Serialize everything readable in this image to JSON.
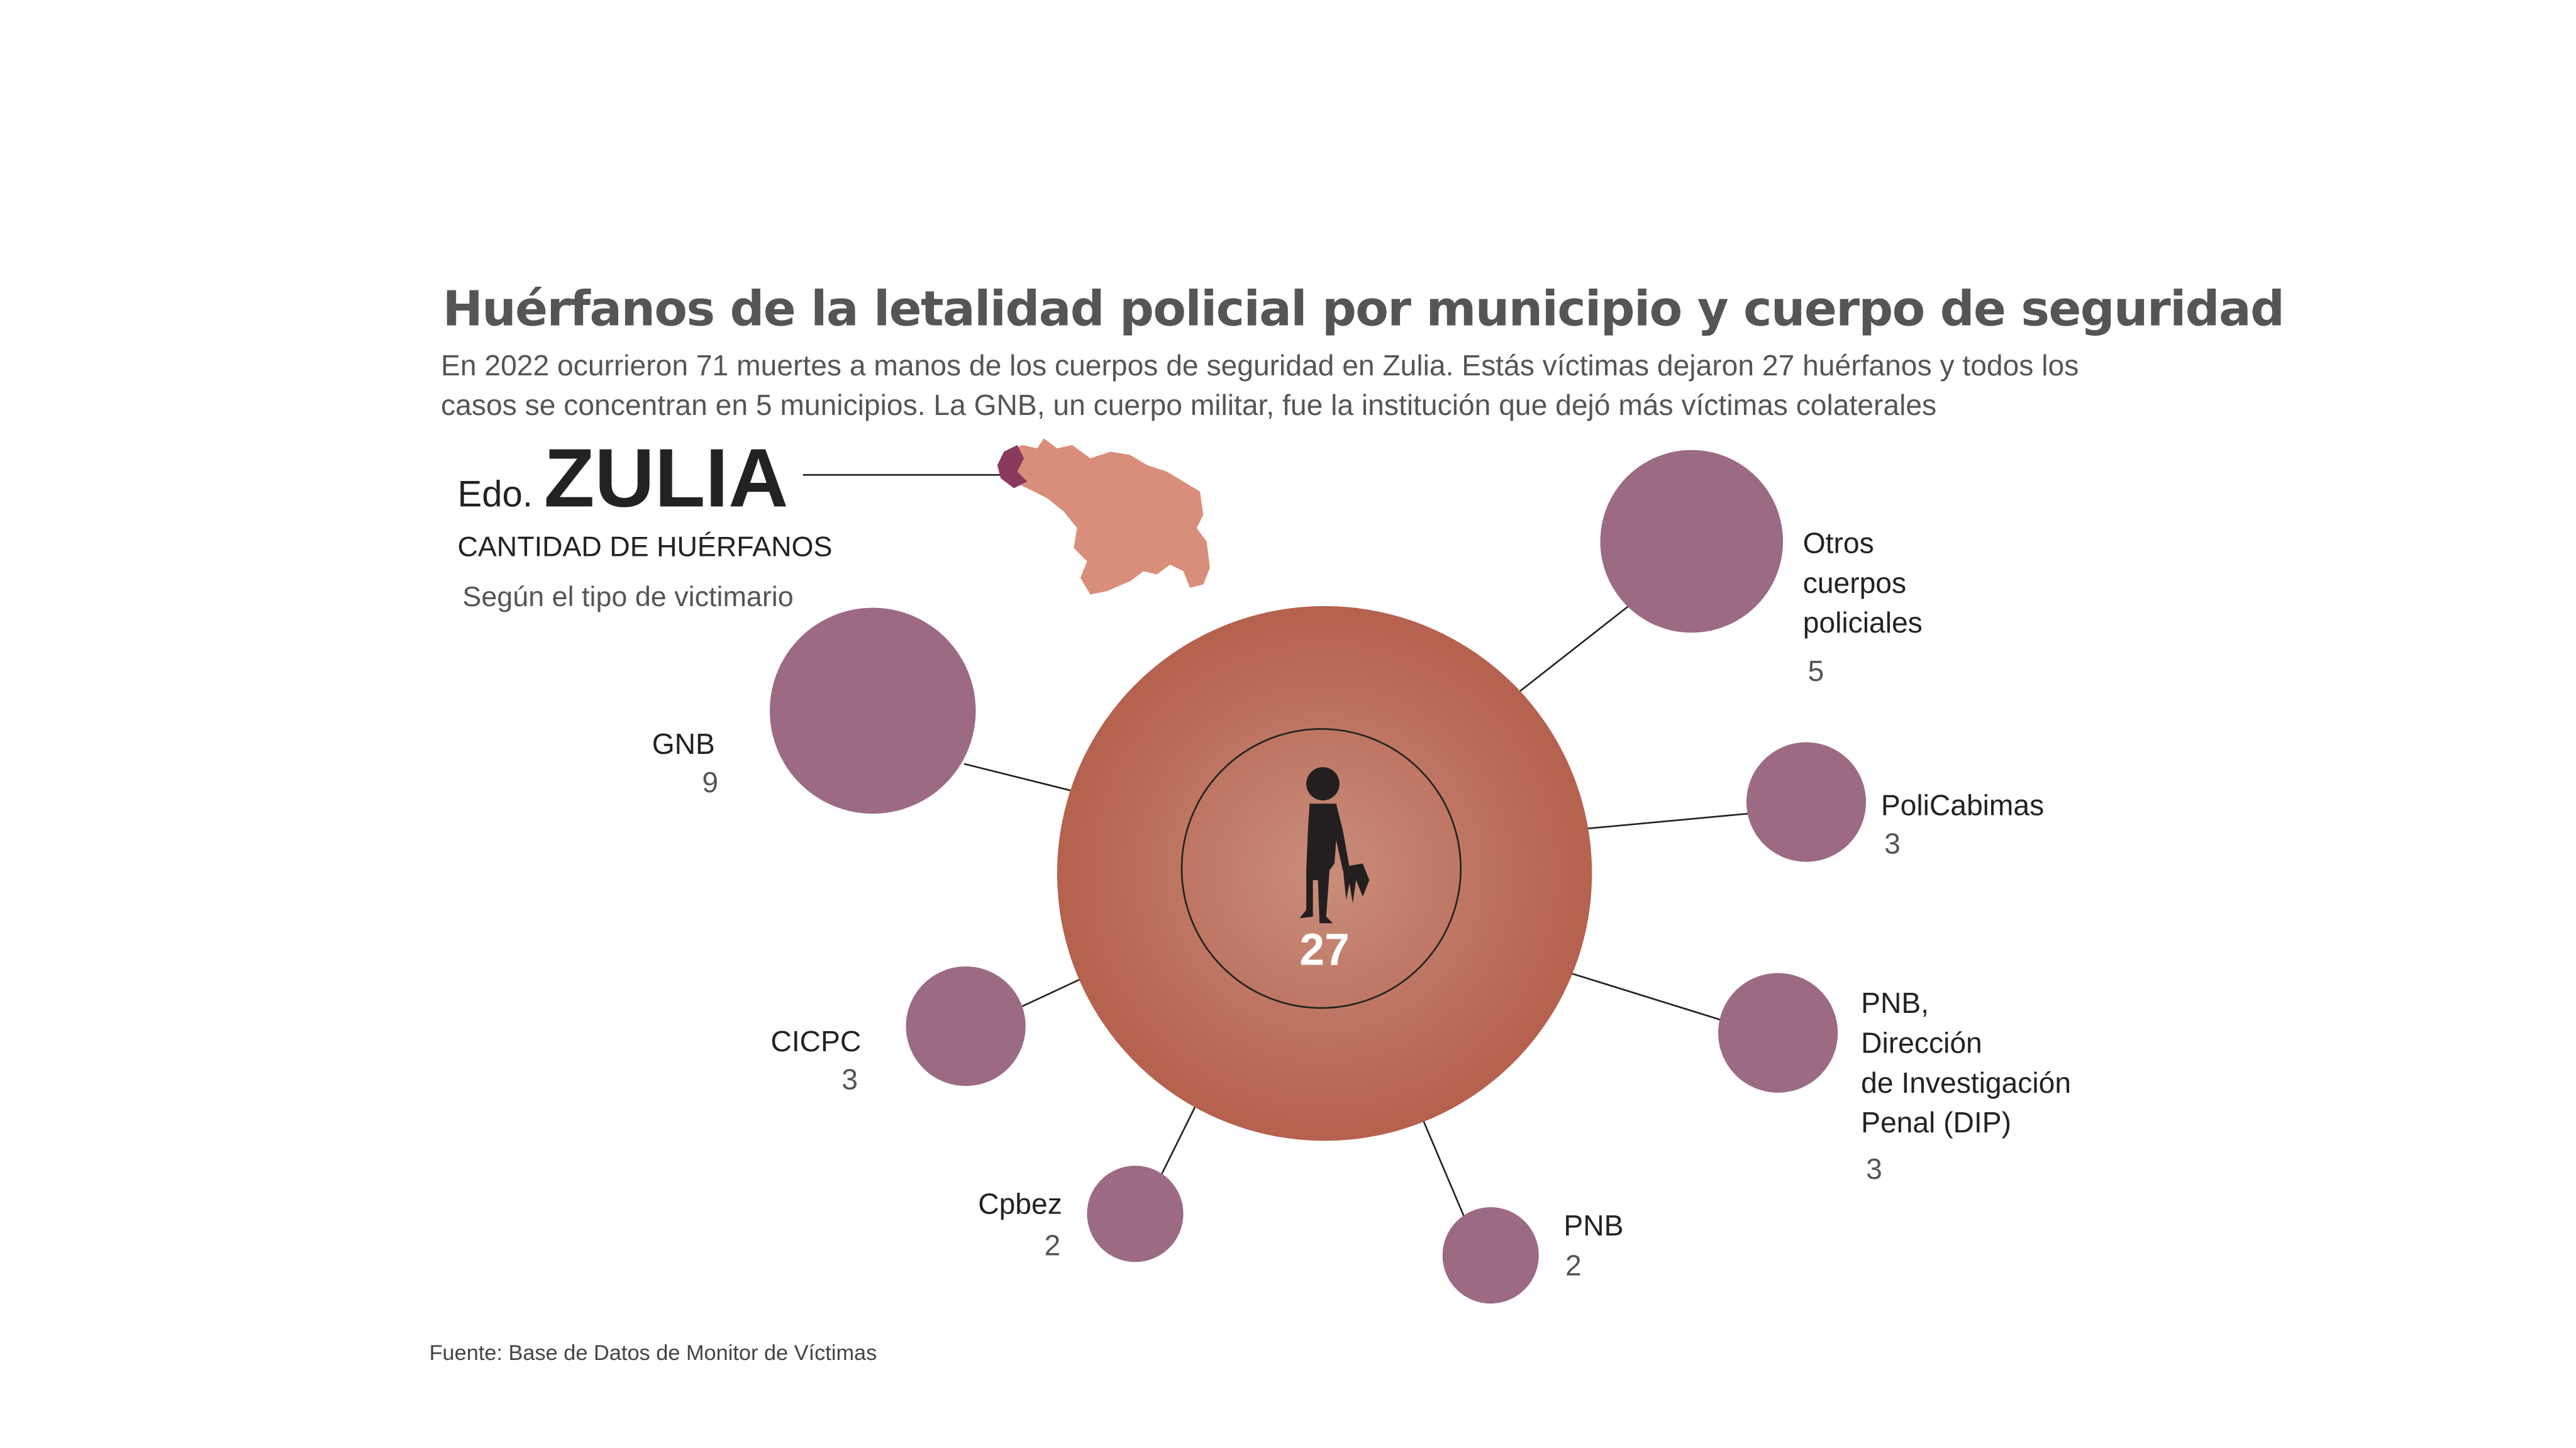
{
  "header": {
    "title": "Huérfanos de la letalidad policial por municipio y cuerpo de seguridad",
    "subtitle_line1": "En 2022 ocurrieron 71 muertes a manos de los cuerpos de seguridad en Zulia. Estás víctimas dejaron 27 huérfanos y todos los",
    "subtitle_line2": "casos se concentran en 5 municipios. La GNB, un cuerpo militar, fue la institución que dejó más víctimas colaterales"
  },
  "state": {
    "prefix": "Edo.",
    "name": "ZULIA",
    "metric": "CANTIDAD DE HUÉRFANOS",
    "note": "Según el tipo de victimario"
  },
  "footer": {
    "source": "Fuente: Base de Datos de Monitor de Víctimas"
  },
  "colors": {
    "bubble": "#9c6a83",
    "center_inner": "#c98e7b",
    "center_outer": "#b5614e",
    "map": "#d98e7a",
    "map_highlight": "#8a3a5c"
  },
  "chart_data": {
    "type": "bubble",
    "title": "Huérfanos de la letalidad policial por municipio y cuerpo de seguridad",
    "total": {
      "label": "27",
      "value": 27
    },
    "series": [
      {
        "name": "GNB",
        "lines": [
          "GNB"
        ],
        "value": 9,
        "value_label": "9"
      },
      {
        "name": "Otros cuerpos policiales",
        "lines": [
          "Otros",
          "cuerpos",
          "policiales"
        ],
        "value": 5,
        "value_label": "5"
      },
      {
        "name": "PoliCabimas",
        "lines": [
          "PoliCabimas"
        ],
        "value": 3,
        "value_label": "3"
      },
      {
        "name": "PNB, Dirección de Investigación Penal (DIP)",
        "lines": [
          "PNB,",
          "Dirección",
          "de Investigación",
          "Penal (DIP)"
        ],
        "value": 3,
        "value_label": "3"
      },
      {
        "name": "PNB",
        "lines": [
          "PNB"
        ],
        "value": 2,
        "value_label": "2"
      },
      {
        "name": "Cpbez",
        "lines": [
          "Cpbez"
        ],
        "value": 2,
        "value_label": "2"
      },
      {
        "name": "CICPC",
        "lines": [
          "CICPC"
        ],
        "value": 3,
        "value_label": "3"
      }
    ]
  }
}
